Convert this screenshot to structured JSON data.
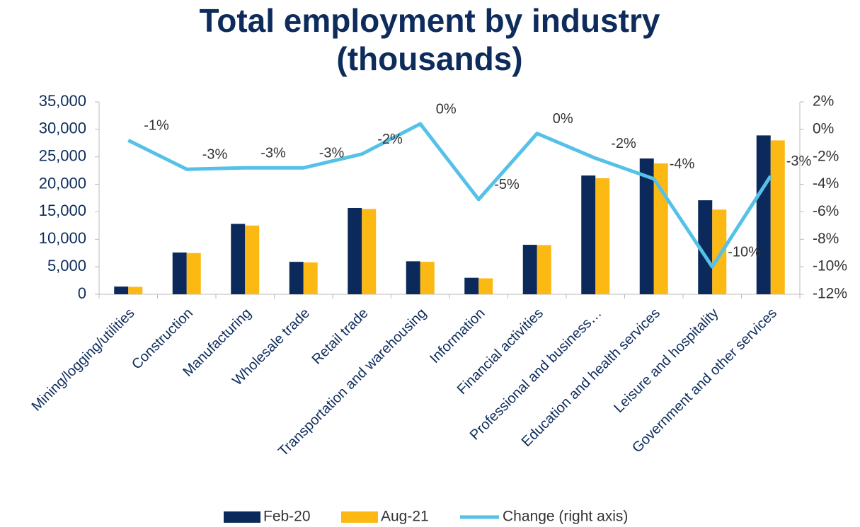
{
  "chart_data": {
    "type": "bar_line",
    "title": "Total employment by industry (thousands)",
    "categories": [
      "Mining/logging/utilities",
      "Construction",
      "Manufacturing",
      "Wholesale trade",
      "Retail trade",
      "Transportation and warehousing",
      "Information",
      "Financial activities",
      "Professional and business…",
      "Education and health services",
      "Leisure and hospitality",
      "Government and other services"
    ],
    "series": [
      {
        "name": "Feb-20",
        "color": "#0b2a5b",
        "values": [
          1400,
          7600,
          12800,
          5900,
          15700,
          6000,
          3000,
          9000,
          21600,
          24700,
          17100,
          28900
        ]
      },
      {
        "name": "Aug-21",
        "color": "#fdb913",
        "values": [
          1350,
          7500,
          12500,
          5800,
          15500,
          5900,
          2900,
          8950,
          21100,
          23800,
          15400,
          28000
        ]
      },
      {
        "name": "Change (right axis)",
        "color": "#56c1e8",
        "axis": "y2",
        "type": "line",
        "values": [
          -0.8,
          -2.9,
          -2.8,
          -2.8,
          -1.8,
          0.4,
          -5.1,
          -0.3,
          -2.1,
          -3.6,
          -10.0,
          -3.4
        ],
        "value_labels": [
          "-1%",
          "-3%",
          "-3%",
          "-3%",
          "-2%",
          "0%",
          "-5%",
          "0%",
          "-2%",
          "-4%",
          "-10%",
          "-3%"
        ]
      }
    ],
    "ylim": [
      0,
      35000
    ],
    "yticks": [
      0,
      {
        "value": 5000,
        "label": "5,000"
      },
      {
        "value": 10000,
        "label": "10,000"
      },
      {
        "value": 15000,
        "label": "15,000"
      },
      {
        "value": 20000,
        "label": "20,000"
      },
      {
        "value": 25000,
        "label": "25,000"
      },
      {
        "value": 30000,
        "label": "30,000"
      },
      {
        "value": 35000,
        "label": "35,000"
      }
    ],
    "y2lim": [
      -12,
      2
    ],
    "y2ticks": [
      {
        "value": -12,
        "label": "-12%"
      },
      {
        "value": -10,
        "label": "-10%"
      },
      {
        "value": -8,
        "label": "-8%"
      },
      {
        "value": -6,
        "label": "-6%"
      },
      {
        "value": -4,
        "label": "-4%"
      },
      {
        "value": -2,
        "label": "-2%"
      },
      {
        "value": 0,
        "label": "0%"
      },
      {
        "value": 2,
        "label": "2%"
      }
    ],
    "legend": "bottom",
    "grid": false
  }
}
